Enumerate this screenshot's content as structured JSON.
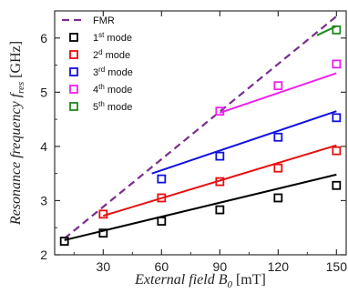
{
  "chart_data": {
    "type": "scatter",
    "xlabel": "External field B₀ [mT]",
    "ylabel": "Resonance frequency f_res [GHz]",
    "xlim": [
      5,
      155
    ],
    "ylim": [
      2,
      6.5
    ],
    "xticks": [
      30,
      60,
      90,
      120,
      150
    ],
    "yticks": [
      2,
      3,
      4,
      5,
      6
    ],
    "legend_position": "top-left",
    "fmr": {
      "name": "FMR",
      "color": "#7b2d8e",
      "style": "dashed",
      "points": [
        [
          10,
          2.3
        ],
        [
          150,
          6.4
        ]
      ]
    },
    "series": [
      {
        "name": "1st mode",
        "color": "#000000",
        "x": [
          10,
          30,
          60,
          90,
          120,
          150
        ],
        "y": [
          2.25,
          2.4,
          2.62,
          2.83,
          3.05,
          3.28
        ],
        "fit": [
          [
            10,
            2.27
          ],
          [
            150,
            3.48
          ]
        ]
      },
      {
        "name": "2nd mode",
        "color": "#e81010",
        "x": [
          30,
          60,
          90,
          120,
          150
        ],
        "y": [
          2.75,
          3.05,
          3.35,
          3.6,
          3.92
        ],
        "fit": [
          [
            30,
            2.72
          ],
          [
            150,
            4.02
          ]
        ]
      },
      {
        "name": "3rd mode",
        "color": "#1010e0",
        "x": [
          60,
          90,
          120,
          150
        ],
        "y": [
          3.4,
          3.82,
          4.17,
          4.53
        ],
        "fit": [
          [
            55,
            3.5
          ],
          [
            150,
            4.65
          ]
        ]
      },
      {
        "name": "4th mode",
        "color": "#ee22ee",
        "x": [
          90,
          120,
          150
        ],
        "y": [
          4.65,
          5.12,
          5.52
        ],
        "fit": [
          [
            90,
            4.62
          ],
          [
            150,
            5.35
          ]
        ]
      },
      {
        "name": "5th mode",
        "color": "#1f8a1f",
        "x": [
          150
        ],
        "y": [
          6.15
        ],
        "fit": [
          [
            140,
            6.05
          ],
          [
            150,
            6.22
          ]
        ]
      }
    ],
    "legend": [
      {
        "label": "FMR",
        "kind": "line",
        "series": "fmr"
      },
      {
        "base": "1",
        "sup": "st",
        "rest": " mode",
        "kind": "marker",
        "series": 0
      },
      {
        "base": "2",
        "sup": "d",
        "rest": " mode",
        "kind": "marker",
        "series": 1
      },
      {
        "base": "3",
        "sup": "rd",
        "rest": " mode",
        "kind": "marker",
        "series": 2
      },
      {
        "base": "4",
        "sup": "th",
        "rest": " mode",
        "kind": "marker",
        "series": 3
      },
      {
        "base": "5",
        "sup": "th",
        "rest": " mode",
        "kind": "marker",
        "series": 4
      }
    ],
    "xlabel_parts": {
      "main": "External field ",
      "var": "B",
      "sub": "0",
      "unit": " [mT]"
    },
    "ylabel_parts": {
      "main": "Resonance frequency ",
      "var": "f",
      "sub": "res",
      "unit": " [GHz]"
    }
  }
}
